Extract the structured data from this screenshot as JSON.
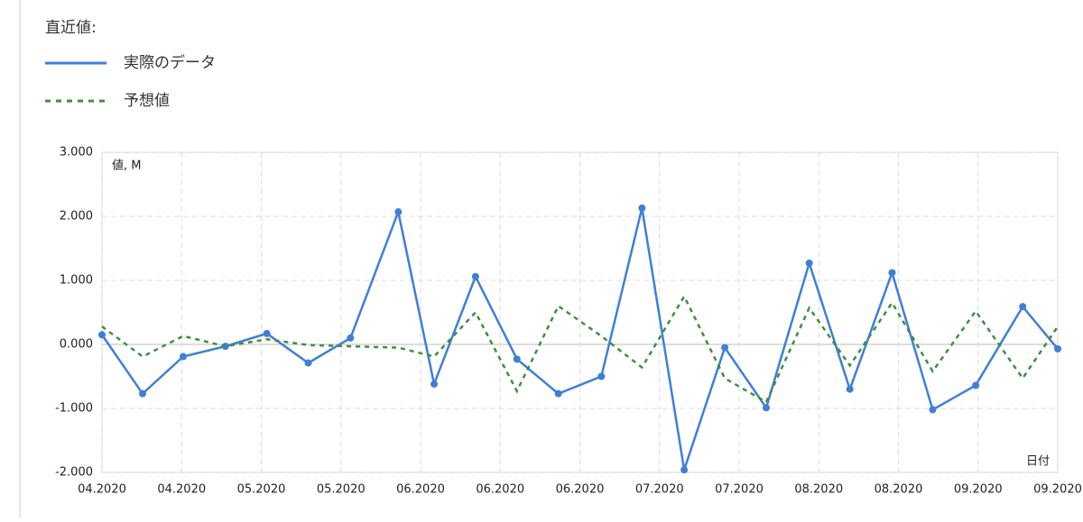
{
  "chart_data": {
    "type": "line",
    "legend_title": "直近値:",
    "y_axis_label": "値, M",
    "x_axis_label": "日付",
    "x": [
      0,
      0.51,
      1.02,
      1.55,
      2.07,
      2.59,
      3.12,
      3.72,
      4.17,
      4.69,
      5.21,
      5.73,
      6.27,
      6.78,
      7.31,
      7.82,
      8.34,
      8.88,
      9.39,
      9.92,
      10.43,
      10.97,
      11.56,
      12
    ],
    "series": [
      {
        "name": "実際のデータ",
        "color": "#3f7fd6",
        "dashed": false,
        "markers": true,
        "values": [
          0.15,
          -0.77,
          -0.19,
          -0.03,
          0.17,
          -0.29,
          0.1,
          2.07,
          -0.62,
          1.06,
          -0.23,
          -0.77,
          -0.5,
          2.13,
          -1.96,
          -0.05,
          -0.99,
          1.27,
          -0.7,
          1.12,
          -1.02,
          -0.64,
          0.59,
          -0.07
        ]
      },
      {
        "name": "予想値",
        "color": "#3f8f3f",
        "dashed": true,
        "markers": false,
        "values": [
          0.28,
          -0.19,
          0.13,
          -0.03,
          0.08,
          -0.01,
          -0.03,
          -0.05,
          -0.19,
          0.5,
          -0.73,
          0.6,
          0.13,
          -0.36,
          0.75,
          -0.53,
          -0.9,
          0.57,
          -0.33,
          0.65,
          -0.42,
          0.52,
          -0.53,
          0.28
        ]
      }
    ],
    "xlim": [
      0,
      12
    ],
    "xticks": [
      {
        "value": 0,
        "label": "04.2020"
      },
      {
        "value": 1,
        "label": "04.2020"
      },
      {
        "value": 2,
        "label": "05.2020"
      },
      {
        "value": 3,
        "label": "05.2020"
      },
      {
        "value": 4,
        "label": "06.2020"
      },
      {
        "value": 5,
        "label": "06.2020"
      },
      {
        "value": 6,
        "label": "06.2020"
      },
      {
        "value": 7,
        "label": "07.2020"
      },
      {
        "value": 8,
        "label": "07.2020"
      },
      {
        "value": 9,
        "label": "08.2020"
      },
      {
        "value": 10,
        "label": "08.2020"
      },
      {
        "value": 11,
        "label": "09.2020"
      },
      {
        "value": 12,
        "label": "09.2020"
      }
    ],
    "ylim": [
      -2,
      3
    ],
    "yticks": [
      {
        "value": -2,
        "label": "-2.000"
      },
      {
        "value": -1,
        "label": "-1.000"
      },
      {
        "value": 0,
        "label": "0.000"
      },
      {
        "value": 1,
        "label": "1.000"
      },
      {
        "value": 2,
        "label": "2.000"
      },
      {
        "value": 3,
        "label": "3.000"
      }
    ],
    "grid": true
  }
}
